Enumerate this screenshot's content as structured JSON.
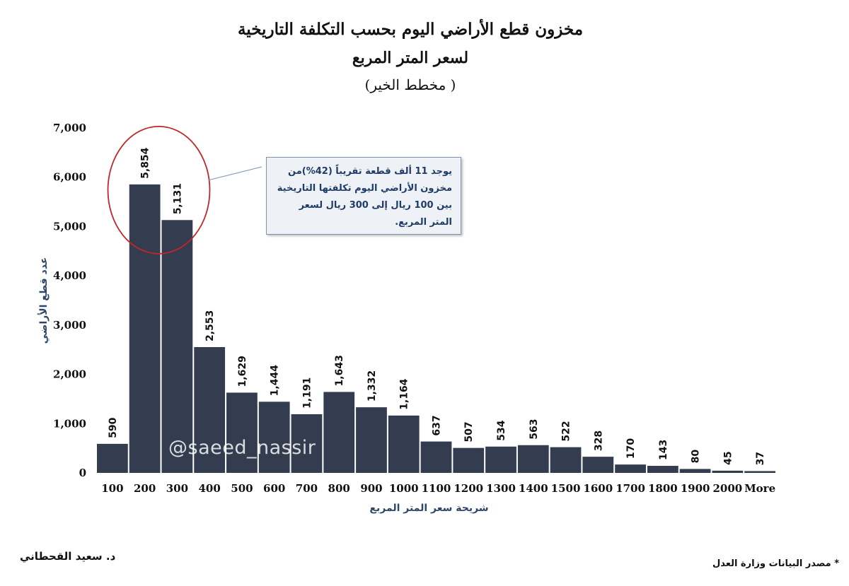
{
  "header": {
    "title": "مخزون قطع الأراضي اليوم بحسب التكلفة التاريخية",
    "subtitle": "لسعر المتر المربع",
    "subtitle2": "(مخطط الخير )"
  },
  "chart_data": {
    "type": "bar",
    "categories": [
      "100",
      "200",
      "300",
      "400",
      "500",
      "600",
      "700",
      "800",
      "900",
      "1000",
      "1100",
      "1200",
      "1300",
      "1400",
      "1500",
      "1600",
      "1700",
      "1800",
      "1900",
      "2000",
      "More"
    ],
    "values": [
      590,
      5854,
      5131,
      2553,
      1629,
      1444,
      1191,
      1643,
      1332,
      1164,
      637,
      507,
      534,
      563,
      522,
      328,
      170,
      143,
      80,
      45,
      37
    ],
    "value_labels": [
      "590",
      "5,854",
      "5,131",
      "2,553",
      "1,629",
      "1,444",
      "1,191",
      "1,643",
      "1,332",
      "1,164",
      "637",
      "507",
      "534",
      "563",
      "522",
      "328",
      "170",
      "143",
      "80",
      "45",
      "37"
    ],
    "ylim": [
      0,
      7000
    ],
    "yticks": [
      0,
      1000,
      2000,
      3000,
      4000,
      5000,
      6000,
      7000
    ],
    "ytick_labels": [
      "0",
      "1,000",
      "2,000",
      "3,000",
      "4,000",
      "5,000",
      "6,000",
      "7,000"
    ],
    "xlabel": "شريحة سعر المتر المربع",
    "ylabel": "عدد قطع الأراضي",
    "grid": false,
    "bar_color": "#333d4f",
    "annotation": {
      "text_lines": [
        "يوجد 11 ألف قطعة تقريباً (42%)من",
        "مخزون الأراضي اليوم تكلفتها التاريخية",
        "بين 100 ريال إلى 300 ريال لسعر المتر المربع."
      ],
      "highlight_color": "#c0262c"
    }
  },
  "watermark": "@saeed_nassir",
  "footer": {
    "author": "د. سعيد القحطاني",
    "source": "* مصدر البيانات وزارة العدل"
  }
}
